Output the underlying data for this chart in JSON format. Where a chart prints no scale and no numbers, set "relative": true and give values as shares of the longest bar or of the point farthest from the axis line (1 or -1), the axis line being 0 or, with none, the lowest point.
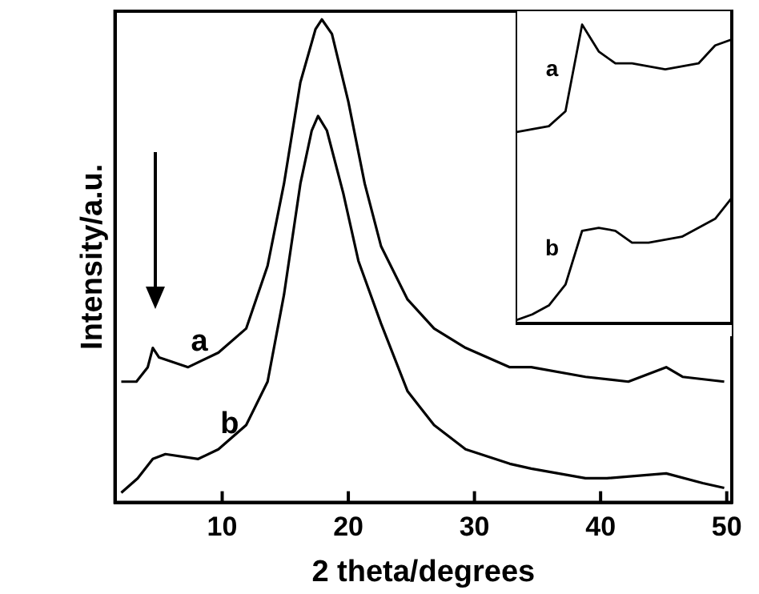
{
  "chart_data": [
    {
      "type": "line",
      "xlabel": "2 theta/degrees",
      "ylabel": "Intensity/a.u.",
      "relative": true,
      "tick_labels": "x",
      "xlim": [
        1.5,
        50.4
      ],
      "xticks": [
        10,
        20,
        30,
        40,
        50
      ],
      "grid": false,
      "legend": false,
      "marker": "none",
      "line_style": "solid",
      "series": [
        {
          "name": "a",
          "color": "#000000",
          "x": [
            2.0,
            3.2,
            4.1,
            4.5,
            5.0,
            7.3,
            9.7,
            11.9,
            13.6,
            14.9,
            16.2,
            17.4,
            17.9,
            18.7,
            20.0,
            21.3,
            22.6,
            24.7,
            26.8,
            29.3,
            32.8,
            34.5,
            38.8,
            42.2,
            45.2,
            46.5,
            49.8
          ],
          "values": [
            0.25,
            0.25,
            0.28,
            0.32,
            0.3,
            0.28,
            0.31,
            0.36,
            0.49,
            0.66,
            0.87,
            0.98,
            1.0,
            0.97,
            0.83,
            0.66,
            0.53,
            0.42,
            0.36,
            0.32,
            0.28,
            0.28,
            0.26,
            0.25,
            0.28,
            0.26,
            0.25
          ]
        },
        {
          "name": "b",
          "color": "#000000",
          "x": [
            2.0,
            3.3,
            4.5,
            5.5,
            8.1,
            9.7,
            11.9,
            13.6,
            14.9,
            16.2,
            17.1,
            17.6,
            18.3,
            19.6,
            20.8,
            22.6,
            24.7,
            26.8,
            29.3,
            32.8,
            34.5,
            38.8,
            40.5,
            45.2,
            48.1,
            49.8
          ],
          "values": [
            0.02,
            0.05,
            0.09,
            0.1,
            0.09,
            0.11,
            0.16,
            0.25,
            0.43,
            0.66,
            0.77,
            0.8,
            0.77,
            0.64,
            0.5,
            0.37,
            0.23,
            0.16,
            0.11,
            0.08,
            0.07,
            0.05,
            0.05,
            0.06,
            0.04,
            0.03
          ]
        }
      ]
    },
    {
      "type": "line",
      "relative": true,
      "tick_labels": false,
      "grid": false,
      "legend": false,
      "marker": "none",
      "line_style": "solid",
      "categories": [
        null,
        null,
        null,
        null,
        null,
        null,
        null,
        null,
        null,
        null,
        null,
        null,
        null,
        null
      ],
      "series": [
        {
          "name": "a",
          "color": "#000000",
          "values": [
            0.64,
            0.65,
            0.66,
            0.71,
            1.0,
            0.91,
            0.87,
            0.87,
            0.86,
            0.85,
            0.86,
            0.87,
            0.93,
            0.95
          ]
        },
        {
          "name": "b",
          "color": "#000000",
          "values": [
            0.01,
            0.03,
            0.06,
            0.13,
            0.31,
            0.32,
            0.31,
            0.27,
            0.27,
            0.28,
            0.29,
            0.32,
            0.35,
            0.42
          ]
        }
      ]
    }
  ]
}
